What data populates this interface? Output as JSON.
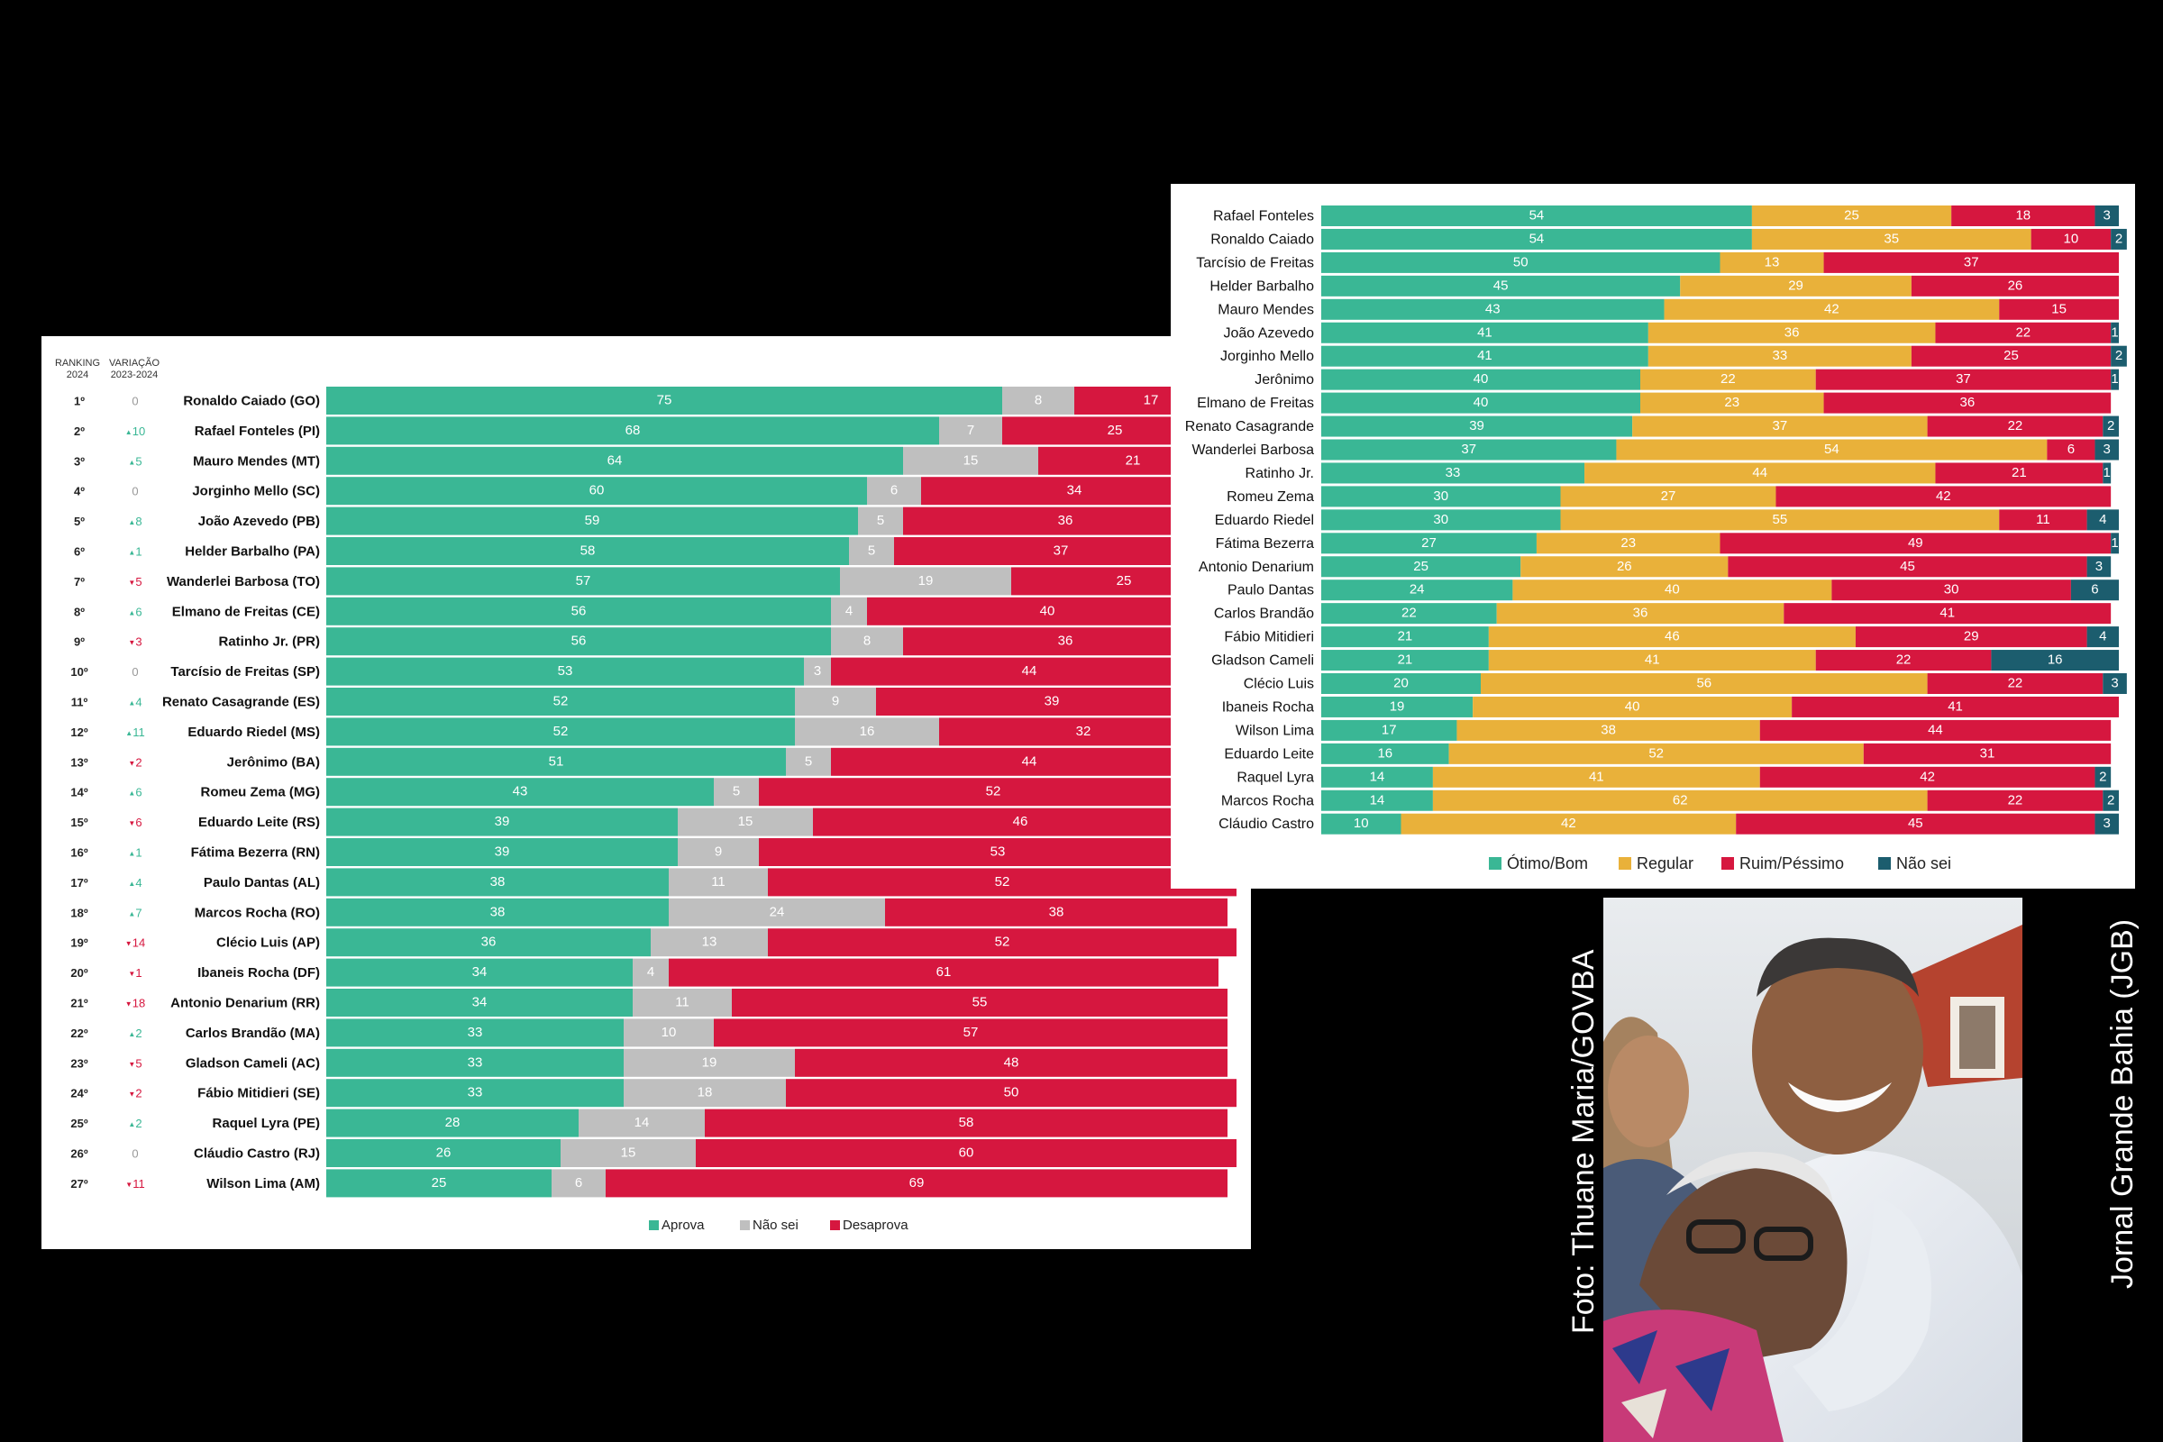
{
  "chart_data": [
    {
      "type": "bar",
      "stacked": true,
      "orientation": "horizontal",
      "header_ranking": [
        "RANKING",
        "2024"
      ],
      "header_variation": [
        "VARIAÇÃO",
        "2023-2024"
      ],
      "ranks": [
        "1º",
        "2º",
        "3º",
        "4º",
        "5º",
        "6º",
        "7º",
        "8º",
        "9º",
        "10º",
        "11º",
        "12º",
        "13º",
        "14º",
        "15º",
        "16º",
        "17º",
        "18º",
        "19º",
        "20º",
        "21º",
        "22º",
        "23º",
        "24º",
        "25º",
        "26º",
        "27º"
      ],
      "variation": [
        {
          "dir": "none",
          "value": "0"
        },
        {
          "dir": "up",
          "value": "10"
        },
        {
          "dir": "up",
          "value": "5"
        },
        {
          "dir": "none",
          "value": "0"
        },
        {
          "dir": "up",
          "value": "8"
        },
        {
          "dir": "up",
          "value": "1"
        },
        {
          "dir": "down",
          "value": "5"
        },
        {
          "dir": "up",
          "value": "6"
        },
        {
          "dir": "down",
          "value": "3"
        },
        {
          "dir": "none",
          "value": "0"
        },
        {
          "dir": "up",
          "value": "4"
        },
        {
          "dir": "up",
          "value": "11"
        },
        {
          "dir": "down",
          "value": "2"
        },
        {
          "dir": "up",
          "value": "6"
        },
        {
          "dir": "down",
          "value": "6"
        },
        {
          "dir": "up",
          "value": "1"
        },
        {
          "dir": "up",
          "value": "4"
        },
        {
          "dir": "up",
          "value": "7"
        },
        {
          "dir": "down",
          "value": "14"
        },
        {
          "dir": "down",
          "value": "1"
        },
        {
          "dir": "down",
          "value": "18"
        },
        {
          "dir": "up",
          "value": "2"
        },
        {
          "dir": "down",
          "value": "5"
        },
        {
          "dir": "down",
          "value": "2"
        },
        {
          "dir": "up",
          "value": "2"
        },
        {
          "dir": "none",
          "value": "0"
        },
        {
          "dir": "down",
          "value": "11"
        }
      ],
      "categories": [
        "Ronaldo Caiado (GO)",
        "Rafael Fonteles (PI)",
        "Mauro Mendes (MT)",
        "Jorginho Mello (SC)",
        "João Azevedo (PB)",
        "Helder Barbalho (PA)",
        "Wanderlei Barbosa (TO)",
        "Elmano de Freitas (CE)",
        "Ratinho Jr. (PR)",
        "Tarcísio de Freitas (SP)",
        "Renato Casagrande (ES)",
        "Eduardo Riedel (MS)",
        "Jerônimo (BA)",
        "Romeu Zema (MG)",
        "Eduardo Leite (RS)",
        "Fátima Bezerra (RN)",
        "Paulo Dantas (AL)",
        "Marcos Rocha (RO)",
        "Clécio Luis (AP)",
        "Ibaneis Rocha (DF)",
        "Antonio Denarium (RR)",
        "Carlos Brandão (MA)",
        "Gladson Cameli (AC)",
        "Fábio Mitidieri (SE)",
        "Raquel Lyra (PE)",
        "Cláudio Castro (RJ)",
        "Wilson Lima (AM)"
      ],
      "series": [
        {
          "name": "Aprova",
          "color": "#3ab795",
          "values": [
            75,
            68,
            64,
            60,
            59,
            58,
            57,
            56,
            56,
            53,
            52,
            52,
            51,
            43,
            39,
            39,
            38,
            38,
            36,
            34,
            34,
            33,
            33,
            33,
            28,
            26,
            25
          ]
        },
        {
          "name": "Não sei",
          "color": "#bfbfbf",
          "values": [
            8,
            7,
            15,
            6,
            5,
            5,
            19,
            4,
            8,
            3,
            9,
            16,
            5,
            5,
            15,
            9,
            11,
            24,
            13,
            4,
            11,
            10,
            19,
            18,
            14,
            15,
            6
          ]
        },
        {
          "name": "Desaprova",
          "color": "#d6173f",
          "values": [
            17,
            25,
            21,
            34,
            36,
            37,
            25,
            40,
            36,
            44,
            39,
            32,
            44,
            52,
            46,
            53,
            52,
            38,
            52,
            61,
            55,
            57,
            48,
            50,
            58,
            60,
            69
          ]
        }
      ],
      "legend": [
        "Aprova",
        "Não sei",
        "Desaprova"
      ],
      "legend_position": "bottom",
      "xlim": [
        0,
        100
      ]
    },
    {
      "type": "bar",
      "stacked": true,
      "orientation": "horizontal",
      "categories": [
        "Rafael Fonteles",
        "Ronaldo Caiado",
        "Tarcísio de Freitas",
        "Helder Barbalho",
        "Mauro Mendes",
        "João Azevedo",
        "Jorginho Mello",
        "Jerônimo",
        "Elmano de Freitas",
        "Renato Casagrande",
        "Wanderlei Barbosa",
        "Ratinho Jr.",
        "Romeu Zema",
        "Eduardo Riedel",
        "Fátima Bezerra",
        "Antonio Denarium",
        "Paulo Dantas",
        "Carlos Brandão",
        "Fábio Mitidieri",
        "Gladson Cameli",
        "Clécio Luis",
        "Ibaneis Rocha",
        "Wilson Lima",
        "Eduardo Leite",
        "Raquel Lyra",
        "Marcos Rocha",
        "Cláudio Castro"
      ],
      "series": [
        {
          "name": "Ótimo/Bom",
          "color": "#3ab795",
          "values": [
            54,
            54,
            50,
            45,
            43,
            41,
            41,
            40,
            40,
            39,
            37,
            33,
            30,
            30,
            27,
            25,
            24,
            22,
            21,
            21,
            20,
            19,
            17,
            16,
            14,
            14,
            10
          ]
        },
        {
          "name": "Regular",
          "color": "#e9b13a",
          "values": [
            25,
            35,
            13,
            29,
            42,
            36,
            33,
            22,
            23,
            37,
            54,
            44,
            27,
            55,
            23,
            26,
            40,
            36,
            46,
            41,
            56,
            40,
            38,
            52,
            41,
            62,
            42
          ]
        },
        {
          "name": "Ruim/Péssimo",
          "color": "#d6173f",
          "values": [
            18,
            10,
            37,
            26,
            15,
            22,
            25,
            37,
            36,
            22,
            6,
            21,
            42,
            11,
            49,
            45,
            30,
            41,
            29,
            22,
            22,
            41,
            44,
            31,
            42,
            22,
            45
          ]
        },
        {
          "name": "Não sei",
          "color": "#1c5d6e",
          "values": [
            3,
            2,
            0,
            0,
            0,
            1,
            2,
            1,
            0,
            2,
            3,
            1,
            0,
            4,
            1,
            3,
            6,
            0,
            4,
            16,
            3,
            0,
            0,
            0,
            2,
            2,
            3
          ]
        }
      ],
      "legend": [
        "Ótimo/Bom",
        "Regular",
        "Ruim/Péssimo",
        "Não sei"
      ],
      "legend_position": "bottom",
      "xlim": [
        0,
        100
      ]
    }
  ],
  "photo": {
    "credit": "Foto: Thuane Maria/GOVBA",
    "watermark": "Jornal Grande Bahia (JGB)"
  },
  "colors": {
    "up": "#3ab795",
    "down": "#d6173f",
    "none": "#999999",
    "label": "#222222"
  }
}
